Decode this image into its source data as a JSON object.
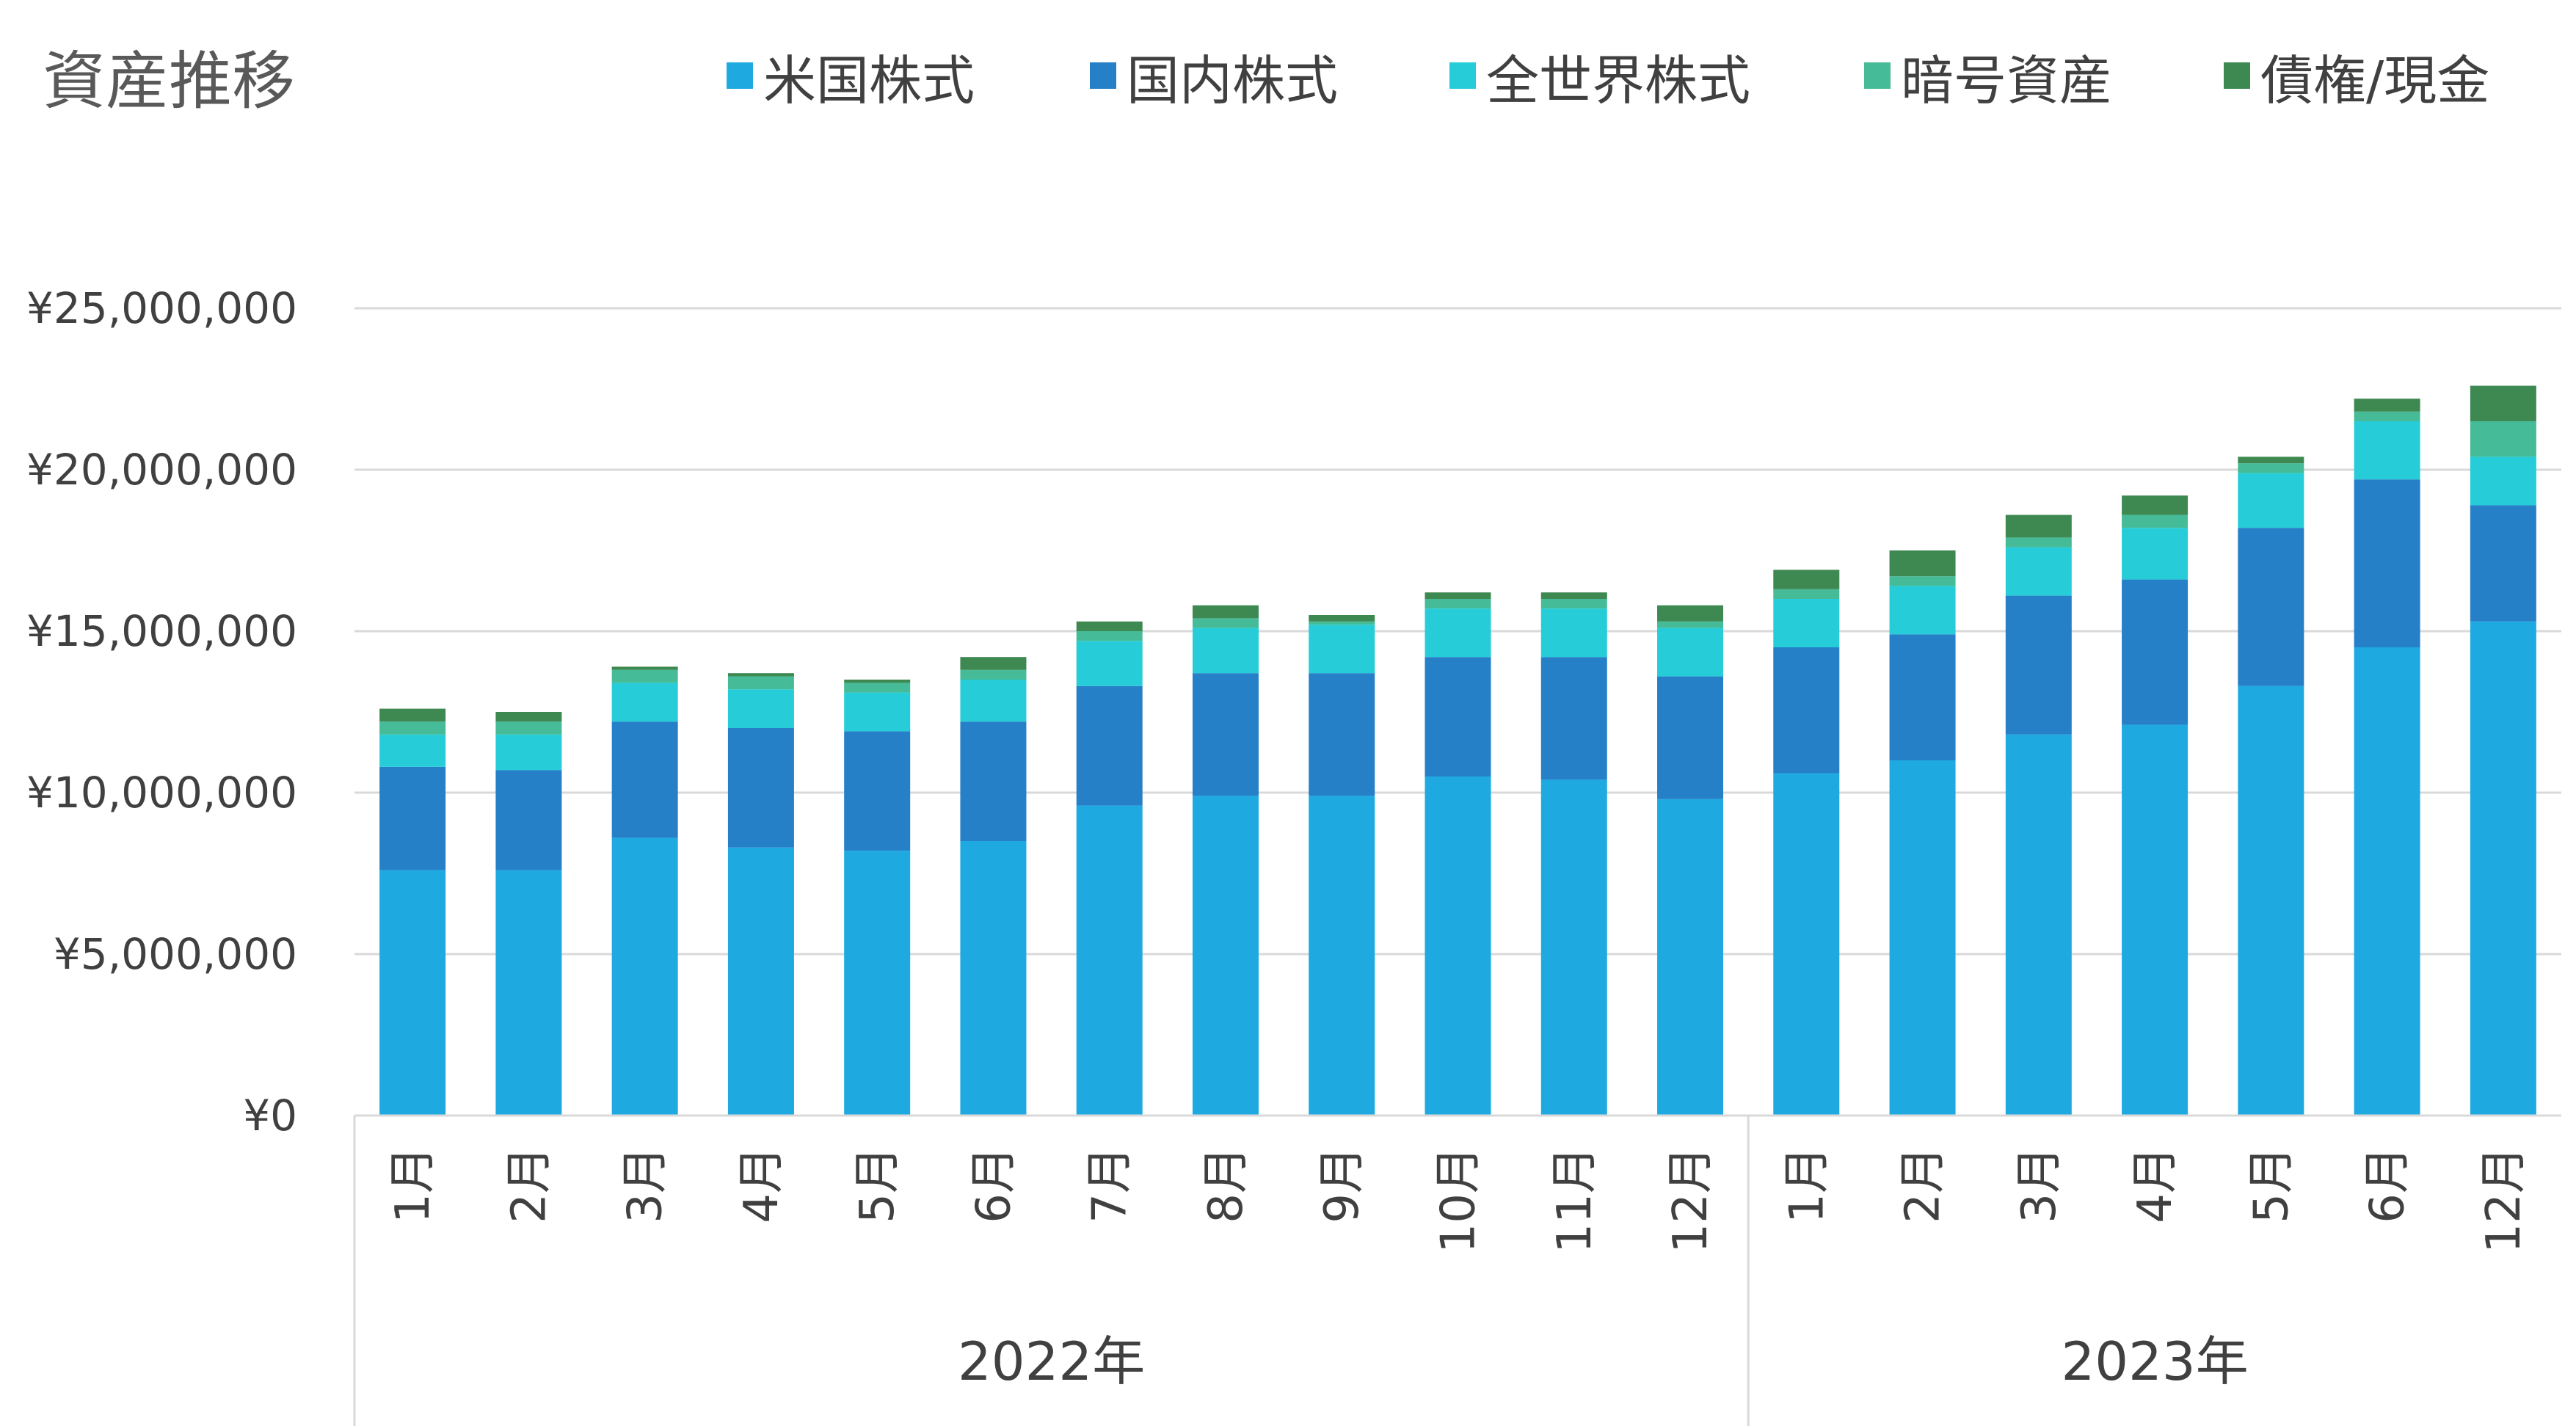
{
  "chart_data": {
    "type": "bar",
    "stacked": true,
    "title": "資産推移",
    "legend_position": "top",
    "grid": true,
    "ylim": [
      0,
      25000000
    ],
    "ytick_labels": [
      "¥0",
      "¥5,000,000",
      "¥10,000,000",
      "¥15,000,000",
      "¥20,000,000",
      "¥25,000,000"
    ],
    "categories": [
      "1月",
      "2月",
      "3月",
      "4月",
      "5月",
      "6月",
      "7月",
      "8月",
      "9月",
      "10月",
      "11月",
      "12月",
      "1月",
      "2月",
      "3月",
      "4月",
      "5月",
      "6月",
      "12月"
    ],
    "groups": [
      {
        "label": "2022年",
        "count": 12
      },
      {
        "label": "2023年",
        "count": 7
      }
    ],
    "series": [
      {
        "name": "米国株式",
        "color": "#1EAAE1",
        "values": [
          7600000,
          7600000,
          8600000,
          8300000,
          8200000,
          8500000,
          9600000,
          9900000,
          9900000,
          10500000,
          10400000,
          9800000,
          10600000,
          11000000,
          11800000,
          12100000,
          13300000,
          14500000,
          15300000
        ]
      },
      {
        "name": "国内株式",
        "color": "#2580C7",
        "values": [
          3200000,
          3100000,
          3600000,
          3700000,
          3700000,
          3700000,
          3700000,
          3800000,
          3800000,
          3700000,
          3800000,
          3800000,
          3900000,
          3900000,
          4300000,
          4500000,
          4900000,
          5200000,
          3600000
        ]
      },
      {
        "name": "全世界株式",
        "color": "#26CDD8",
        "values": [
          1000000,
          1100000,
          1200000,
          1200000,
          1200000,
          1300000,
          1400000,
          1400000,
          1500000,
          1500000,
          1500000,
          1500000,
          1500000,
          1500000,
          1500000,
          1600000,
          1700000,
          1800000,
          1500000
        ]
      },
      {
        "name": "暗号資産",
        "color": "#45BB97",
        "values": [
          400000,
          400000,
          400000,
          400000,
          300000,
          300000,
          300000,
          300000,
          100000,
          300000,
          300000,
          200000,
          300000,
          300000,
          300000,
          400000,
          300000,
          300000,
          1100000
        ]
      },
      {
        "name": "債権/現金",
        "color": "#3E8852",
        "values": [
          400000,
          300000,
          100000,
          100000,
          100000,
          400000,
          300000,
          400000,
          200000,
          200000,
          200000,
          500000,
          600000,
          800000,
          700000,
          600000,
          200000,
          400000,
          1100000
        ]
      }
    ]
  }
}
